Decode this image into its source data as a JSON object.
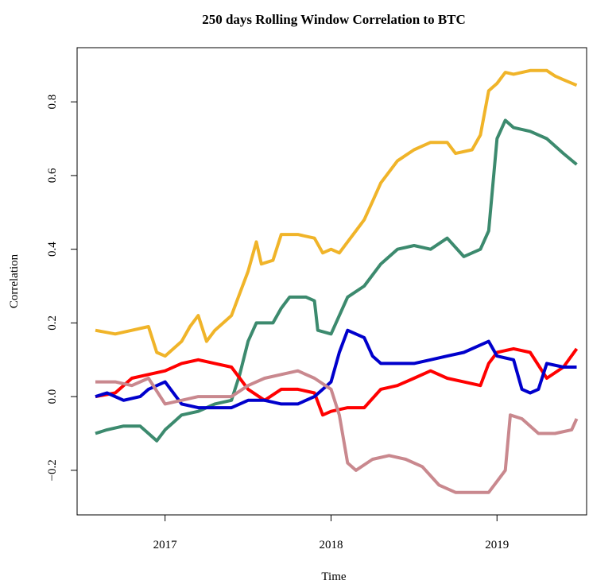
{
  "chart_data": {
    "type": "line",
    "title": "250 days Rolling Window Correlation to BTC",
    "x_label": "Time",
    "y_label": "Correlation",
    "xlim": [
      2016.47,
      2019.54
    ],
    "ylim": [
      -0.321,
      0.947
    ],
    "xticks": [
      2017,
      2018,
      2019
    ],
    "yticks": [
      {
        "value": -0.2,
        "label": "−0.2"
      },
      {
        "value": 0,
        "label": "0.0"
      },
      0.2,
      0.4,
      0.6,
      0.8
    ],
    "series": [
      {
        "color": "#f0b429",
        "x": [
          2016.58,
          2016.7,
          2016.8,
          2016.9,
          2016.95,
          2017.0,
          2017.1,
          2017.15,
          2017.2,
          2017.25,
          2017.3,
          2017.4,
          2017.45,
          2017.5,
          2017.55,
          2017.58,
          2017.65,
          2017.7,
          2017.8,
          2017.9,
          2017.95,
          2018.0,
          2018.05,
          2018.1,
          2018.15,
          2018.2,
          2018.25,
          2018.3,
          2018.4,
          2018.5,
          2018.55,
          2018.6,
          2018.7,
          2018.75,
          2018.85,
          2018.9,
          2018.95,
          2019.0,
          2019.05,
          2019.1,
          2019.2,
          2019.3,
          2019.35,
          2019.4,
          2019.48
        ],
        "values": [
          0.18,
          0.17,
          0.18,
          0.19,
          0.12,
          0.11,
          0.15,
          0.19,
          0.22,
          0.15,
          0.18,
          0.22,
          0.28,
          0.34,
          0.42,
          0.36,
          0.37,
          0.44,
          0.44,
          0.43,
          0.39,
          0.4,
          0.39,
          0.42,
          0.45,
          0.48,
          0.53,
          0.58,
          0.64,
          0.67,
          0.68,
          0.69,
          0.69,
          0.66,
          0.67,
          0.71,
          0.83,
          0.85,
          0.88,
          0.875,
          0.885,
          0.885,
          0.87,
          0.86,
          0.845
        ]
      },
      {
        "color": "#3c8a6e",
        "x": [
          2016.58,
          2016.65,
          2016.75,
          2016.85,
          2016.9,
          2016.95,
          2017.0,
          2017.05,
          2017.1,
          2017.2,
          2017.3,
          2017.4,
          2017.45,
          2017.5,
          2017.55,
          2017.65,
          2017.7,
          2017.75,
          2017.85,
          2017.9,
          2017.92,
          2018.0,
          2018.05,
          2018.1,
          2018.2,
          2018.3,
          2018.4,
          2018.5,
          2018.6,
          2018.7,
          2018.8,
          2018.9,
          2018.95,
          2019.0,
          2019.05,
          2019.1,
          2019.2,
          2019.3,
          2019.4,
          2019.48
        ],
        "values": [
          -0.1,
          -0.09,
          -0.08,
          -0.08,
          -0.1,
          -0.12,
          -0.09,
          -0.07,
          -0.05,
          -0.04,
          -0.02,
          -0.01,
          0.06,
          0.15,
          0.2,
          0.2,
          0.24,
          0.27,
          0.27,
          0.26,
          0.18,
          0.17,
          0.22,
          0.27,
          0.3,
          0.36,
          0.4,
          0.41,
          0.4,
          0.43,
          0.38,
          0.4,
          0.45,
          0.7,
          0.75,
          0.73,
          0.72,
          0.7,
          0.66,
          0.63
        ]
      },
      {
        "color": "#ff0000",
        "x": [
          2016.58,
          2016.7,
          2016.8,
          2016.9,
          2017.0,
          2017.1,
          2017.2,
          2017.3,
          2017.4,
          2017.5,
          2017.6,
          2017.7,
          2017.8,
          2017.9,
          2017.95,
          2018.0,
          2018.1,
          2018.2,
          2018.3,
          2018.4,
          2018.5,
          2018.6,
          2018.7,
          2018.8,
          2018.9,
          2018.95,
          2019.0,
          2019.1,
          2019.2,
          2019.3,
          2019.4,
          2019.48
        ],
        "values": [
          0.0,
          0.01,
          0.05,
          0.06,
          0.07,
          0.09,
          0.1,
          0.09,
          0.08,
          0.02,
          -0.01,
          0.02,
          0.02,
          0.01,
          -0.05,
          -0.04,
          -0.03,
          -0.03,
          0.02,
          0.03,
          0.05,
          0.07,
          0.05,
          0.04,
          0.03,
          0.09,
          0.12,
          0.13,
          0.12,
          0.05,
          0.08,
          0.13
        ]
      },
      {
        "color": "#0000cc",
        "x": [
          2016.58,
          2016.65,
          2016.75,
          2016.85,
          2016.9,
          2017.0,
          2017.1,
          2017.2,
          2017.3,
          2017.4,
          2017.5,
          2017.6,
          2017.7,
          2017.8,
          2017.9,
          2018.0,
          2018.05,
          2018.1,
          2018.2,
          2018.25,
          2018.3,
          2018.4,
          2018.5,
          2018.6,
          2018.7,
          2018.8,
          2018.9,
          2018.95,
          2019.0,
          2019.1,
          2019.15,
          2019.2,
          2019.25,
          2019.3,
          2019.4,
          2019.48
        ],
        "values": [
          0.0,
          0.01,
          -0.01,
          0.0,
          0.02,
          0.04,
          -0.02,
          -0.03,
          -0.03,
          -0.03,
          -0.01,
          -0.01,
          -0.02,
          -0.02,
          0.0,
          0.04,
          0.12,
          0.18,
          0.16,
          0.11,
          0.09,
          0.09,
          0.09,
          0.1,
          0.11,
          0.12,
          0.14,
          0.15,
          0.11,
          0.1,
          0.02,
          0.01,
          0.02,
          0.09,
          0.08,
          0.08
        ]
      },
      {
        "color": "#c9888e",
        "x": [
          2016.58,
          2016.7,
          2016.8,
          2016.9,
          2017.0,
          2017.1,
          2017.2,
          2017.3,
          2017.4,
          2017.5,
          2017.6,
          2017.7,
          2017.8,
          2017.9,
          2018.0,
          2018.05,
          2018.1,
          2018.15,
          2018.25,
          2018.35,
          2018.45,
          2018.55,
          2018.65,
          2018.75,
          2018.85,
          2018.95,
          2019.0,
          2019.05,
          2019.08,
          2019.15,
          2019.25,
          2019.35,
          2019.45,
          2019.48
        ],
        "values": [
          0.04,
          0.04,
          0.03,
          0.05,
          -0.02,
          -0.01,
          0.0,
          0.0,
          0.0,
          0.03,
          0.05,
          0.06,
          0.07,
          0.05,
          0.02,
          -0.05,
          -0.18,
          -0.2,
          -0.17,
          -0.16,
          -0.17,
          -0.19,
          -0.24,
          -0.26,
          -0.26,
          -0.26,
          -0.23,
          -0.2,
          -0.05,
          -0.06,
          -0.1,
          -0.1,
          -0.09,
          -0.06
        ]
      }
    ]
  }
}
